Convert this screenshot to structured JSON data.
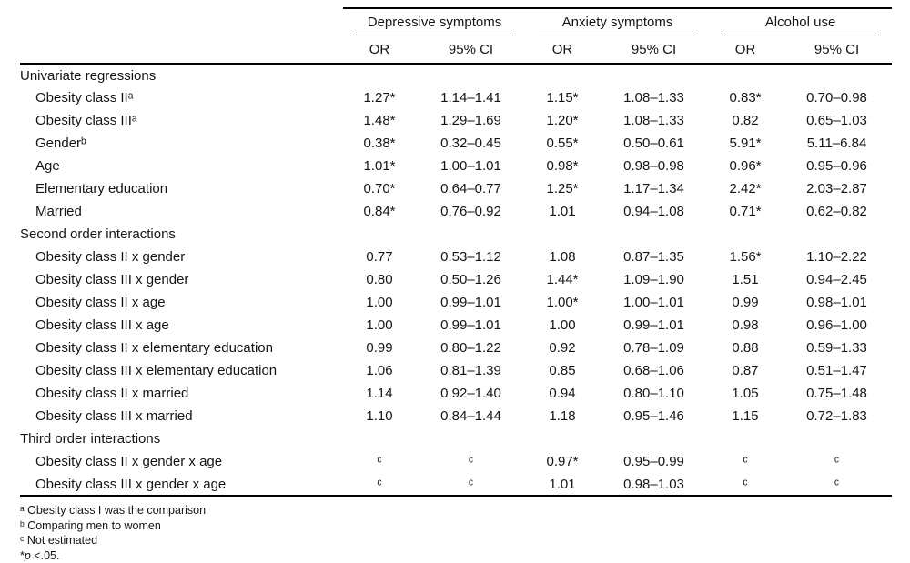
{
  "table": {
    "col_groups": [
      {
        "label": "Depressive symptoms"
      },
      {
        "label": "Anxiety symptoms"
      },
      {
        "label": "Alcohol use"
      }
    ],
    "sub_headers": {
      "or": "OR",
      "ci": "95% CI"
    },
    "rows": [
      {
        "type": "section",
        "label": "Univariate regressions"
      },
      {
        "type": "data",
        "label": "Obesity class IIᵃ",
        "values": [
          "1.27*",
          "1.14–1.41",
          "1.15*",
          "1.08–1.33",
          "0.83*",
          "0.70–0.98"
        ]
      },
      {
        "type": "data",
        "label": "Obesity class IIIᵃ",
        "values": [
          "1.48*",
          "1.29–1.69",
          "1.20*",
          "1.08–1.33",
          "0.82",
          "0.65–1.03"
        ]
      },
      {
        "type": "data",
        "label": "Genderᵇ",
        "values": [
          "0.38*",
          "0.32–0.45",
          "0.55*",
          "0.50–0.61",
          "5.91*",
          "5.11–6.84"
        ]
      },
      {
        "type": "data",
        "label": "Age",
        "values": [
          "1.01*",
          "1.00–1.01",
          "0.98*",
          "0.98–0.98",
          "0.96*",
          "0.95–0.96"
        ]
      },
      {
        "type": "data",
        "label": "Elementary education",
        "values": [
          "0.70*",
          "0.64–0.77",
          "1.25*",
          "1.17–1.34",
          "2.42*",
          "2.03–2.87"
        ]
      },
      {
        "type": "data",
        "label": "Married",
        "values": [
          "0.84*",
          "0.76–0.92",
          "1.01",
          "0.94–1.08",
          "0.71*",
          "0.62–0.82"
        ]
      },
      {
        "type": "section",
        "label": "Second order interactions"
      },
      {
        "type": "data",
        "label": "Obesity class II x gender",
        "values": [
          "0.77",
          "0.53–1.12",
          "1.08",
          "0.87–1.35",
          "1.56*",
          "1.10–2.22"
        ]
      },
      {
        "type": "data",
        "label": "Obesity class III x gender",
        "values": [
          "0.80",
          "0.50–1.26",
          "1.44*",
          "1.09–1.90",
          "1.51",
          "0.94–2.45"
        ]
      },
      {
        "type": "data",
        "label": "Obesity class II x age",
        "values": [
          "1.00",
          "0.99–1.01",
          "1.00*",
          "1.00–1.01",
          "0.99",
          "0.98–1.01"
        ]
      },
      {
        "type": "data",
        "label": "Obesity class III x age",
        "values": [
          "1.00",
          "0.99–1.01",
          "1.00",
          "0.99–1.01",
          "0.98",
          "0.96–1.00"
        ]
      },
      {
        "type": "data",
        "label": "Obesity class II x elementary education",
        "values": [
          "0.99",
          "0.80–1.22",
          "0.92",
          "0.78–1.09",
          "0.88",
          "0.59–1.33"
        ]
      },
      {
        "type": "data",
        "label": "Obesity class III x elementary education",
        "values": [
          "1.06",
          "0.81–1.39",
          "0.85",
          "0.68–1.06",
          "0.87",
          "0.51–1.47"
        ]
      },
      {
        "type": "data",
        "label": "Obesity class II x married",
        "values": [
          "1.14",
          "0.92–1.40",
          "0.94",
          "0.80–1.10",
          "1.05",
          "0.75–1.48"
        ]
      },
      {
        "type": "data",
        "label": "Obesity class III x married",
        "values": [
          "1.10",
          "0.84–1.44",
          "1.18",
          "0.95–1.46",
          "1.15",
          "0.72–1.83"
        ]
      },
      {
        "type": "section",
        "label": "Third order interactions"
      },
      {
        "type": "data",
        "label": "Obesity class II x gender x age",
        "values": [
          "ᶜ",
          "ᶜ",
          "0.97*",
          "0.95–0.99",
          "ᶜ",
          "ᶜ"
        ]
      },
      {
        "type": "data",
        "label": "Obesity class III x gender x age",
        "values": [
          "ᶜ",
          "ᶜ",
          "1.01",
          "0.98–1.03",
          "ᶜ",
          "ᶜ"
        ]
      }
    ],
    "footnotes": [
      "ᵃ Obesity class I was the comparison",
      "ᵇ Comparing men to women",
      "ᶜ Not estimated"
    ],
    "pvalue_note": {
      "star": "*",
      "p": "p",
      "rest": " <.05."
    }
  }
}
